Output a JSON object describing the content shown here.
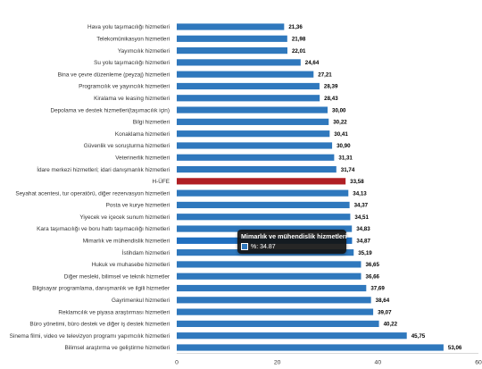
{
  "chart_data": {
    "type": "bar",
    "orientation": "horizontal",
    "categories": [
      "Hava yolu taşımacılığı hizmetleri",
      "Telekomünikasyon hizmetleri",
      "Yayımcılık hizmetleri",
      "Su yolu taşımacılığı hizmetleri",
      "Bina ve çevre düzenleme (peyzaj) hizmetleri",
      "Programcılık ve yayıncılık hizmetleri",
      "Kiralama ve leasing hizmetleri",
      "Depolama ve destek hizmetleri(taşımacılık için)",
      "Bilgi hizmetleri",
      "Konaklama hizmetleri",
      "Güvenlik ve soruşturma hizmetleri",
      "Veterinerlik hizmetleri",
      "İdare merkezi hizmetleri; idari danışmanlık hizmetleri",
      "H-ÜFE",
      "Seyahat acentesi, tur operatörü, diğer rezervasyon hizmetleri",
      "Posta ve kurye hizmetleri",
      "Yiyecek ve içecek sunum hizmetleri",
      "Kara taşımacılığı ve boru hattı taşımacılığı hizmetleri",
      "Mimarlık ve mühendislik hizmetleri",
      "İstihdam hizmetleri",
      "Hukuk ve muhasebe hizmetleri",
      "Diğer mesleki, bilimsel ve teknik hizmetler",
      "Bilgisayar programlama, danışmanlık ve ilgili hizmetler",
      "Gayrimenkul hizmetleri",
      "Reklamcılık ve piyasa araştırması hizmetleri",
      "Büro yönetimi, büro destek ve diğer iş destek hizmetleri",
      "Sinema filmi, video ve televizyon programı yapımcılık hizmetleri",
      "Bilimsel araştırma ve geliştirme hizmetleri"
    ],
    "values": [
      21.36,
      21.98,
      22.01,
      24.64,
      27.21,
      28.39,
      28.43,
      30.0,
      30.22,
      30.41,
      30.9,
      31.31,
      31.74,
      33.58,
      34.13,
      34.37,
      34.51,
      34.83,
      34.87,
      35.19,
      36.65,
      36.66,
      37.69,
      38.64,
      39.07,
      40.22,
      45.75,
      53.06
    ],
    "value_labels": [
      "21,36",
      "21,98",
      "22,01",
      "24,64",
      "27,21",
      "28,39",
      "28,43",
      "30,00",
      "30,22",
      "30,41",
      "30,90",
      "31,31",
      "31,74",
      "33,58",
      "34,13",
      "34,37",
      "34,51",
      "34,83",
      "34,87",
      "35,19",
      "36,65",
      "36,66",
      "37,69",
      "38,64",
      "39,07",
      "40,22",
      "45,75",
      "53,06"
    ],
    "xlim": [
      0,
      60
    ],
    "xticks": [
      "0",
      "20",
      "40",
      "60"
    ],
    "grid": false,
    "legend": false,
    "colors": {
      "default_bar": "#2f78bd",
      "highlight_bar": "#b01f24",
      "hover_bar": "#1f6fc0"
    },
    "highlight_category": "H-ÜFE",
    "hover_category": "Mimarlık ve mühendislik hizmetleri"
  },
  "tooltip": {
    "title": "Mimarlık ve mühendislik hizmetleri",
    "series_label": "%: 34.87",
    "swatch_color": "#2f78bd"
  }
}
